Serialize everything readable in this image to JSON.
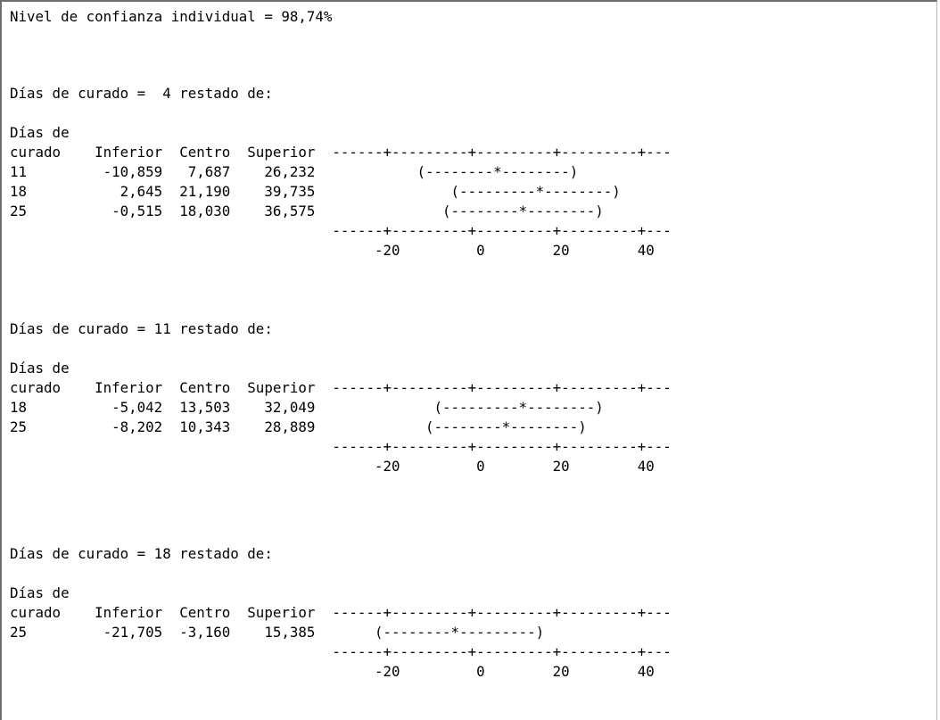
{
  "header": "Nivel de confianza individual = 98,74%",
  "groups": [
    {
      "title": "Días de curado =  4 restado de:",
      "col_label_1": "Días de",
      "col_header_row": "curado    Inferior  Centro  Superior  ------+---------+---------+---------+---",
      "rows": [
        "11         -10,859   7,687    26,232            (--------*--------)",
        "18           2,645  21,190    39,735                (---------*--------)",
        "25          -0,515  18,030    36,575               (--------*--------)"
      ],
      "axis_line": "                                      ------+---------+---------+---------+---",
      "axis_ticks": "                                           -20         0        20        40"
    },
    {
      "title": "Días de curado = 11 restado de:",
      "col_label_1": "Días de",
      "col_header_row": "curado    Inferior  Centro  Superior  ------+---------+---------+---------+---",
      "rows": [
        "18          -5,042  13,503    32,049              (---------*--------)",
        "25          -8,202  10,343    28,889             (--------*--------)"
      ],
      "axis_line": "                                      ------+---------+---------+---------+---",
      "axis_ticks": "                                           -20         0        20        40"
    },
    {
      "title": "Días de curado = 18 restado de:",
      "col_label_1": "Días de",
      "col_header_row": "curado    Inferior  Centro  Superior  ------+---------+---------+---------+---",
      "rows": [
        "25         -21,705  -3,160    15,385       (--------*---------)"
      ],
      "axis_line": "                                      ------+---------+---------+---------+---",
      "axis_ticks": "                                           -20         0        20        40"
    }
  ]
}
